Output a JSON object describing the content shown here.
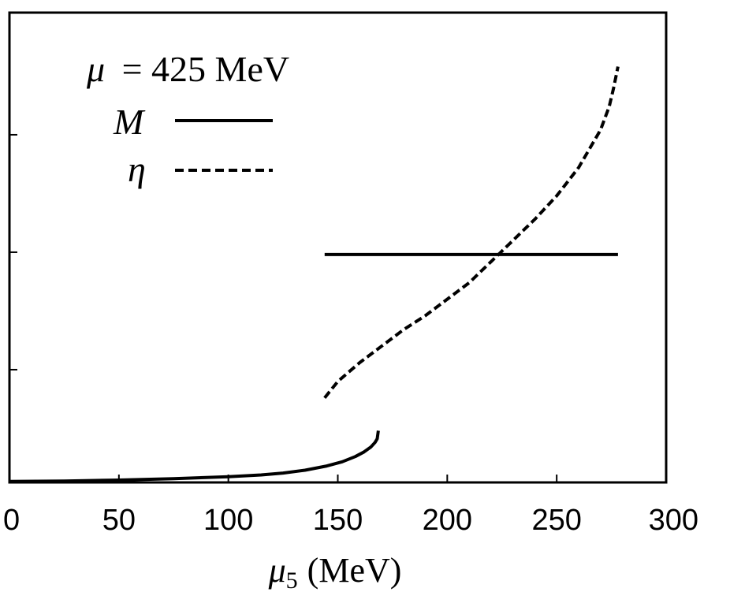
{
  "chart_data": {
    "type": "line",
    "legend": {
      "placement": "top-left",
      "title": "μ = 425 MeV",
      "title_symbol": "μ",
      "title_value": "= 425 MeV",
      "entries": [
        {
          "label": "M",
          "style": "solid"
        },
        {
          "label": "η",
          "style": "dashed"
        }
      ]
    },
    "xlabel": "μ5 (MeV)",
    "xlabel_symbol": "μ",
    "xlabel_sub": "5",
    "xlabel_unit": "(MeV)",
    "ylabel": "",
    "xlim": [
      0,
      300
    ],
    "ylim": [
      0,
      1
    ],
    "xticks": [
      "0",
      "50",
      "100",
      "150",
      "200",
      "250",
      "300"
    ],
    "y_tick_values": [
      0.24,
      0.49,
      0.74
    ],
    "grid": false,
    "series": [
      {
        "name": "M",
        "style": "solid",
        "segments": [
          [
            [
              0,
              0.002
            ],
            [
              25,
              0.003
            ],
            [
              50,
              0.005
            ],
            [
              75,
              0.008
            ],
            [
              100,
              0.012
            ],
            [
              115,
              0.016
            ],
            [
              125,
              0.02
            ],
            [
              135,
              0.026
            ],
            [
              145,
              0.035
            ],
            [
              152,
              0.044
            ],
            [
              158,
              0.055
            ],
            [
              162,
              0.065
            ],
            [
              165,
              0.075
            ],
            [
              167,
              0.085
            ],
            [
              168,
              0.093
            ],
            [
              168.5,
              0.11
            ]
          ],
          [
            [
              144,
              0.485
            ],
            [
              278,
              0.485
            ]
          ]
        ]
      },
      {
        "name": "η",
        "style": "dashed",
        "segments": [
          [
            [
              144,
              0.18
            ],
            [
              150,
              0.215
            ],
            [
              160,
              0.255
            ],
            [
              170,
              0.29
            ],
            [
              180,
              0.325
            ],
            [
              190,
              0.355
            ],
            [
              200,
              0.39
            ],
            [
              210,
              0.425
            ],
            [
              220,
              0.47
            ],
            [
              230,
              0.515
            ],
            [
              240,
              0.56
            ],
            [
              250,
              0.61
            ],
            [
              260,
              0.67
            ],
            [
              265,
              0.71
            ],
            [
              270,
              0.75
            ],
            [
              274,
              0.8
            ],
            [
              276,
              0.84
            ],
            [
              278,
              0.885
            ]
          ]
        ]
      }
    ]
  }
}
